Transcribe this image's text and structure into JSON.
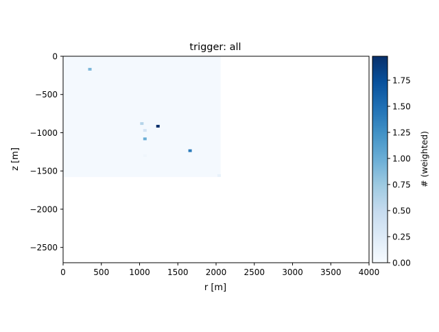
{
  "chart_data": {
    "type": "heatmap",
    "title": "trigger: all",
    "xlabel": "r [m]",
    "ylabel": "z [m]",
    "xlim": [
      0,
      4000
    ],
    "ylim": [
      -2700,
      0
    ],
    "xticks": [
      "0",
      "500",
      "1000",
      "1500",
      "2000",
      "2500",
      "3000",
      "3500",
      "4000"
    ],
    "yticks": [
      "0",
      "−500",
      "−1000",
      "−1500",
      "−2000",
      "−2500"
    ],
    "grid": false,
    "colormap": "Blues",
    "colorbar": {
      "label": "# (weighted)",
      "range": [
        0,
        1.98
      ],
      "ticks": [
        "0.00",
        "0.25",
        "0.50",
        "0.75",
        "1.00",
        "1.25",
        "1.50",
        "1.75"
      ]
    },
    "background_region": {
      "r": [
        0,
        2060
      ],
      "z": [
        -1580,
        0
      ],
      "value": 0.03
    },
    "cells": [
      {
        "r": 350,
        "z": -170,
        "value": 0.9
      },
      {
        "r": 1030,
        "z": -880,
        "value": 0.6
      },
      {
        "r": 1070,
        "z": -970,
        "value": 0.35
      },
      {
        "r": 1240,
        "z": -915,
        "value": 1.98
      },
      {
        "r": 1070,
        "z": -1080,
        "value": 1.0
      },
      {
        "r": 1660,
        "z": -1235,
        "value": 1.4
      },
      {
        "r": 1070,
        "z": -1300,
        "value": 0.08
      },
      {
        "r": 2040,
        "z": -1560,
        "value": 0.15
      }
    ],
    "colors": {
      "blues_low": "#f7fbff",
      "blues_mid": "#6baed6",
      "blues_high": "#08306b"
    }
  }
}
